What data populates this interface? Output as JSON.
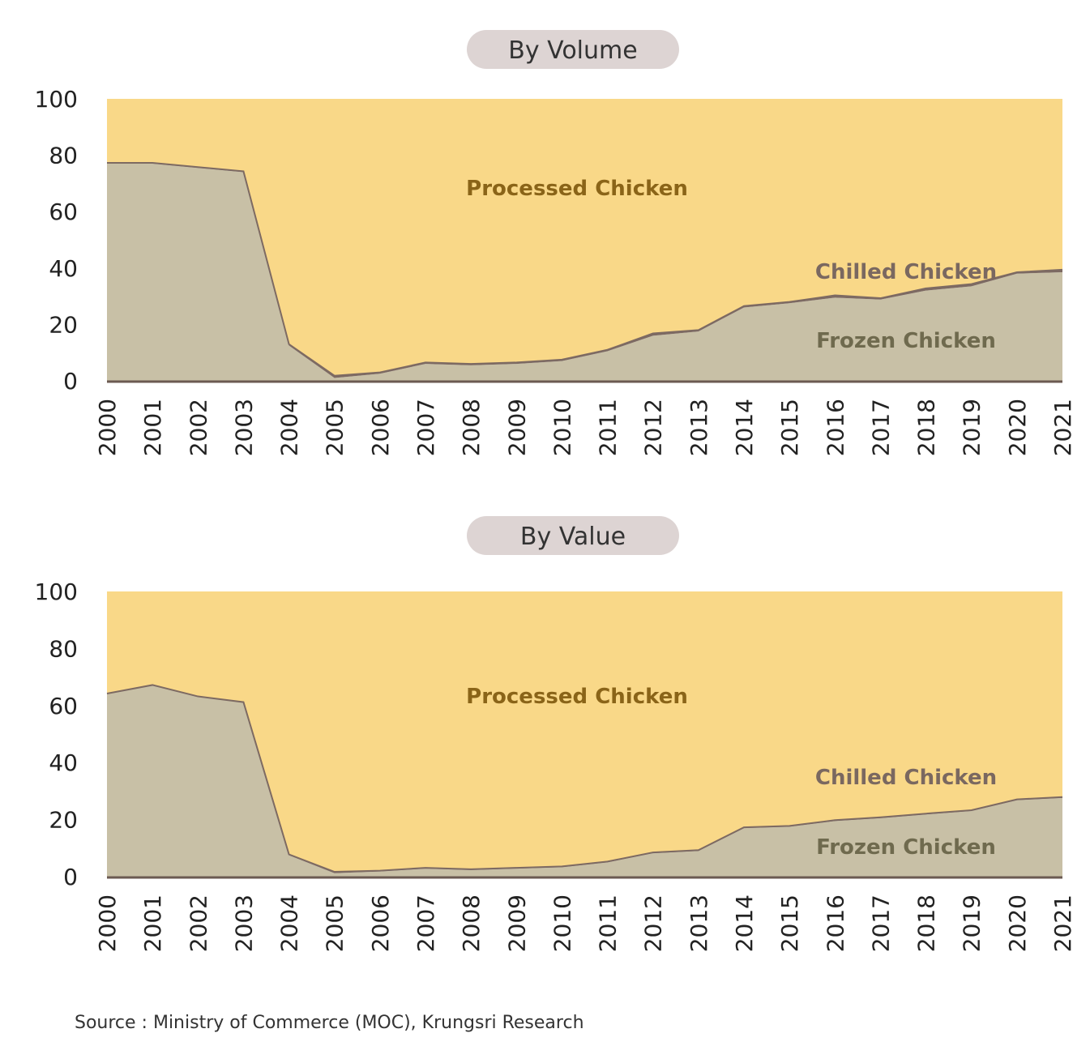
{
  "source": "Source : Ministry of Commerce (MOC), Krungsri Research",
  "colors": {
    "processed": "#f9d888",
    "frozen": "#c8c0a6",
    "chilled": "#7d6a62",
    "processed_label": "#8a6418",
    "frozen_label": "#6f6a4e",
    "chilled_label": "#7a6860",
    "axis": "#6b5a52"
  },
  "chart_data": [
    {
      "type": "area",
      "stacked": true,
      "title": "By Volume",
      "x": [
        "2000",
        "2001",
        "2002",
        "2003",
        "2004",
        "2005",
        "2006",
        "2007",
        "2008",
        "2009",
        "2010",
        "2011",
        "2012",
        "2013",
        "2014",
        "2015",
        "2016",
        "2017",
        "2018",
        "2019",
        "2020",
        "2021"
      ],
      "ylim": [
        0,
        100
      ],
      "yticks": [
        "0",
        "20",
        "40",
        "60",
        "80",
        "100"
      ],
      "series": [
        {
          "name": "Frozen Chicken",
          "values": [
            77,
            77,
            75.5,
            74,
            12.5,
            1,
            2.5,
            6,
            5.5,
            6,
            7,
            10.5,
            16,
            17.5,
            26,
            27.5,
            29.5,
            28.8,
            32,
            33.5,
            38,
            38.5
          ]
        },
        {
          "name": "Chilled Chicken",
          "values": [
            0.3,
            0.3,
            0.3,
            0.3,
            0.5,
            0.8,
            0.5,
            0.5,
            0.5,
            0.5,
            0.5,
            0.5,
            0.8,
            0.5,
            0.5,
            0.5,
            0.8,
            0.5,
            0.8,
            0.8,
            0.5,
            0.9
          ]
        },
        {
          "name": "Processed Chicken",
          "values": [
            22.7,
            22.7,
            24.2,
            25.7,
            87,
            98.2,
            97,
            93.5,
            94,
            93.5,
            92.5,
            89,
            83.2,
            82,
            73.5,
            72,
            69.7,
            70.7,
            67.2,
            65.7,
            61.5,
            60.6
          ]
        }
      ]
    },
    {
      "type": "area",
      "stacked": true,
      "title": "By Value",
      "x": [
        "2000",
        "2001",
        "2002",
        "2003",
        "2004",
        "2005",
        "2006",
        "2007",
        "2008",
        "2009",
        "2010",
        "2011",
        "2012",
        "2013",
        "2014",
        "2015",
        "2016",
        "2017",
        "2018",
        "2019",
        "2020",
        "2021"
      ],
      "ylim": [
        0,
        100
      ],
      "yticks": [
        "0",
        "20",
        "40",
        "60",
        "80",
        "100"
      ],
      "series": [
        {
          "name": "Frozen Chicken",
          "values": [
            64,
            67,
            63,
            61,
            7.5,
            1.2,
            1.8,
            2.8,
            2.3,
            2.8,
            3.3,
            5,
            8.2,
            9,
            17,
            17.5,
            19.5,
            20.5,
            21.8,
            23,
            26.8,
            27.6
          ]
        },
        {
          "name": "Chilled Chicken",
          "values": [
            0.2,
            0.2,
            0.2,
            0.2,
            0.3,
            0.5,
            0.3,
            0.3,
            0.3,
            0.3,
            0.3,
            0.3,
            0.3,
            0.3,
            0.3,
            0.3,
            0.3,
            0.3,
            0.3,
            0.3,
            0.3,
            0.3
          ]
        },
        {
          "name": "Processed Chicken",
          "values": [
            35.8,
            32.8,
            36.8,
            38.8,
            92.2,
            98.3,
            97.9,
            96.9,
            97.4,
            96.9,
            96.4,
            94.7,
            91.5,
            90.7,
            82.7,
            82.2,
            80.2,
            79.2,
            77.9,
            76.7,
            72.9,
            72.1
          ]
        }
      ]
    }
  ]
}
